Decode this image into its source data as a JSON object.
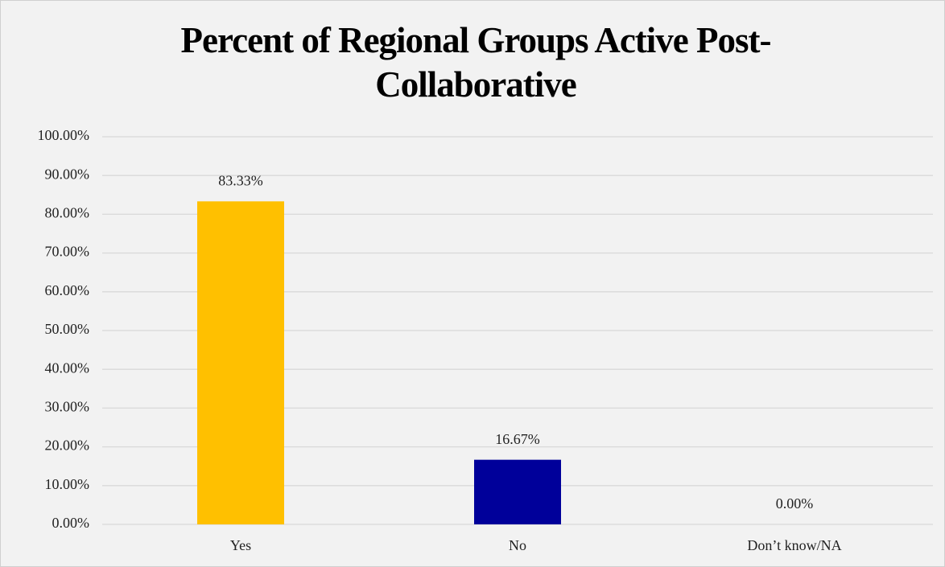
{
  "chart_data": {
    "type": "bar",
    "title": "Percent of Regional Groups Active Post-Collaborative",
    "categories": [
      "Yes",
      "No",
      "Don’t know/NA"
    ],
    "values": [
      83.33,
      16.67,
      0
    ],
    "value_labels": [
      "83.33%",
      "16.67%",
      "0.00%"
    ],
    "colors": [
      "#ffc000",
      "#00009a",
      "#a5a5a5"
    ],
    "ylim": [
      0,
      100
    ],
    "yticks": [
      {
        "value": 0,
        "label": "0.00%"
      },
      {
        "value": 10,
        "label": "10.00%"
      },
      {
        "value": 20,
        "label": "20.00%"
      },
      {
        "value": 30,
        "label": "30.00%"
      },
      {
        "value": 40,
        "label": "40.00%"
      },
      {
        "value": 50,
        "label": "50.00%"
      },
      {
        "value": 60,
        "label": "60.00%"
      },
      {
        "value": 70,
        "label": "70.00%"
      },
      {
        "value": 80,
        "label": "80.00%"
      },
      {
        "value": 90,
        "label": "90.00%"
      },
      {
        "value": 100,
        "label": "100.00%"
      }
    ],
    "grid": true
  }
}
